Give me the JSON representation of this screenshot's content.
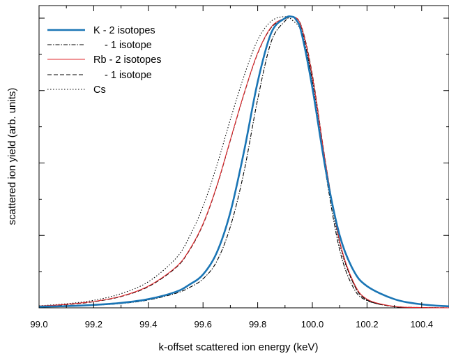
{
  "chart_data": {
    "type": "line",
    "title": "",
    "xlabel": "k-offset scattered ion energy (keV)",
    "ylabel": "scattered ion yield (arb. units)",
    "xlim": [
      99.0,
      100.5
    ],
    "ylim": [
      0,
      1.0
    ],
    "x_ticks": [
      "99.0",
      "99.2",
      "99.4",
      "99.6",
      "99.8",
      "100.0",
      "100.2",
      "100.4"
    ],
    "y_tick_labels_shown": false,
    "grid": false,
    "legend_position": "top-left",
    "series": [
      {
        "name": "K - 2 isotopes",
        "color": "#1a75b5",
        "style": "solid",
        "x": [
          99.0,
          99.1,
          99.2,
          99.3,
          99.4,
          99.5,
          99.55,
          99.6,
          99.65,
          99.7,
          99.75,
          99.8,
          99.85,
          99.9,
          99.925,
          99.94,
          99.96,
          100.0,
          100.05,
          100.1,
          100.15,
          100.2,
          100.3,
          100.4,
          100.5
        ],
        "y": [
          0.004,
          0.006,
          0.01,
          0.017,
          0.03,
          0.055,
          0.08,
          0.115,
          0.19,
          0.33,
          0.54,
          0.78,
          0.95,
          1.0,
          1.005,
          0.995,
          0.95,
          0.76,
          0.47,
          0.25,
          0.13,
          0.075,
          0.03,
          0.012,
          0.005
        ]
      },
      {
        "name": "- 1 isotope",
        "color": "#000000",
        "style": "dashdot",
        "x": [
          99.0,
          99.1,
          99.2,
          99.3,
          99.4,
          99.5,
          99.55,
          99.6,
          99.65,
          99.7,
          99.75,
          99.8,
          99.85,
          99.9,
          99.925,
          99.94,
          99.96,
          100.0,
          100.05,
          100.1,
          100.15,
          100.2,
          100.3,
          100.4,
          100.5
        ],
        "y": [
          0.003,
          0.005,
          0.009,
          0.015,
          0.027,
          0.05,
          0.07,
          0.1,
          0.16,
          0.28,
          0.47,
          0.72,
          0.92,
          0.99,
          1.005,
          1.0,
          0.965,
          0.78,
          0.46,
          0.2,
          0.07,
          0.025,
          0.005,
          0.001,
          0.0
        ]
      },
      {
        "name": "Rb - 2 isotopes",
        "color": "#e0282c",
        "style": "solid",
        "x": [
          99.0,
          99.1,
          99.2,
          99.3,
          99.4,
          99.5,
          99.55,
          99.6,
          99.65,
          99.7,
          99.75,
          99.8,
          99.85,
          99.9,
          99.93,
          99.96,
          100.0,
          100.05,
          100.1,
          100.15,
          100.2,
          100.3,
          100.4,
          100.5
        ],
        "y": [
          0.006,
          0.012,
          0.022,
          0.04,
          0.075,
          0.14,
          0.2,
          0.29,
          0.42,
          0.58,
          0.74,
          0.88,
          0.97,
          1.0,
          1.005,
          0.97,
          0.8,
          0.49,
          0.23,
          0.09,
          0.03,
          0.005,
          0.001,
          0.0
        ]
      },
      {
        "name": "- 1 isotope",
        "color": "#000000",
        "style": "dashed",
        "x": [
          99.0,
          99.1,
          99.2,
          99.3,
          99.4,
          99.5,
          99.55,
          99.6,
          99.65,
          99.7,
          99.75,
          99.8,
          99.85,
          99.9,
          99.93,
          99.96,
          100.0,
          100.05,
          100.1,
          100.15,
          100.2,
          100.3,
          100.4,
          100.5
        ],
        "y": [
          0.006,
          0.011,
          0.021,
          0.039,
          0.073,
          0.138,
          0.198,
          0.288,
          0.418,
          0.578,
          0.738,
          0.878,
          0.968,
          0.998,
          1.004,
          0.972,
          0.805,
          0.492,
          0.228,
          0.085,
          0.027,
          0.004,
          0.001,
          0.0
        ]
      },
      {
        "name": "Cs",
        "color": "#000000",
        "style": "dotted",
        "x": [
          99.0,
          99.1,
          99.2,
          99.3,
          99.4,
          99.5,
          99.55,
          99.6,
          99.65,
          99.7,
          99.75,
          99.8,
          99.85,
          99.9,
          99.93,
          99.96,
          100.0,
          100.05,
          100.1,
          100.15,
          100.2,
          100.3,
          100.4,
          100.5
        ],
        "y": [
          0.007,
          0.014,
          0.026,
          0.049,
          0.09,
          0.17,
          0.245,
          0.35,
          0.49,
          0.65,
          0.8,
          0.925,
          0.99,
          1.005,
          0.99,
          0.95,
          0.79,
          0.48,
          0.22,
          0.085,
          0.028,
          0.004,
          0.001,
          0.0
        ]
      }
    ]
  }
}
